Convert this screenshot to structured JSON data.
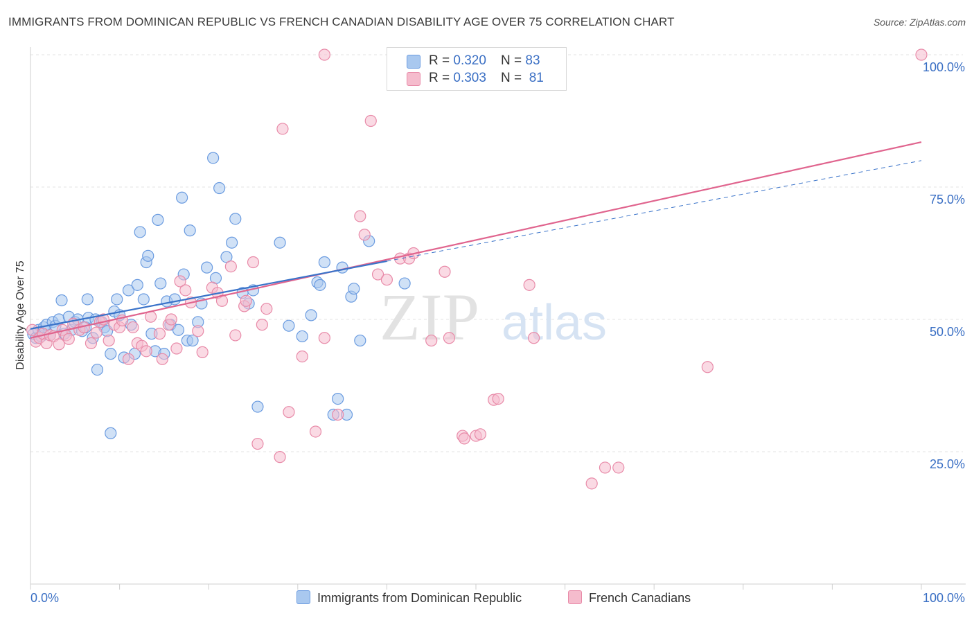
{
  "header": {
    "title": "IMMIGRANTS FROM DOMINICAN REPUBLIC VS FRENCH CANADIAN DISABILITY AGE OVER 75 CORRELATION CHART",
    "source": "Source: ZipAtlas.com"
  },
  "watermark": {
    "zip": "ZIP",
    "atlas": "atlas"
  },
  "legend": {
    "series1": {
      "r_label": "R = ",
      "r_value": "0.320",
      "n_label": "N = ",
      "n_value": "83"
    },
    "series2": {
      "r_label": "R = ",
      "r_value": "0.303",
      "n_label": "N = ",
      "n_value": "81"
    }
  },
  "colors": {
    "blue_fill": "#a9c8ef",
    "blue_stroke": "#6a9be0",
    "blue_line": "#3a73c9",
    "pink_fill": "#f5bccd",
    "pink_stroke": "#e88aa8",
    "pink_line": "#e0648e",
    "axis_text": "#3a6fc4",
    "grid": "#e3e3e3"
  },
  "chart_data": {
    "type": "scatter",
    "title": "IMMIGRANTS FROM DOMINICAN REPUBLIC VS FRENCH CANADIAN DISABILITY AGE OVER 75 CORRELATION CHART",
    "xlabel": "",
    "ylabel": "Disability Age Over 75",
    "xlim": [
      0,
      100
    ],
    "ylim": [
      0,
      100
    ],
    "x_tick_labels": [
      "0.0%",
      "100.0%"
    ],
    "y_tick_labels": [
      "25.0%",
      "50.0%",
      "75.0%",
      "100.0%"
    ],
    "y_ticks": [
      25,
      50,
      75,
      100
    ],
    "grid": "horizontal dashed",
    "legend_position": "top-center",
    "series": [
      {
        "name": "Immigrants from Dominican Republic",
        "color": "#6a9be0",
        "trend": {
          "x": [
            0,
            40
          ],
          "y": [
            48.2,
            61.0
          ],
          "extension_x": [
            40,
            100
          ],
          "extension_y": [
            61.0,
            80.0
          ]
        },
        "points": [
          [
            0.3,
            47.2
          ],
          [
            0.6,
            46.5
          ],
          [
            0.9,
            48.0
          ],
          [
            1.2,
            46.8
          ],
          [
            1.5,
            48.5
          ],
          [
            1.8,
            49.0
          ],
          [
            2.2,
            47.0
          ],
          [
            2.5,
            49.5
          ],
          [
            2.8,
            48.8
          ],
          [
            3.2,
            50.0
          ],
          [
            3.5,
            53.6
          ],
          [
            3.8,
            47.3
          ],
          [
            4.3,
            50.5
          ],
          [
            4.6,
            48.0
          ],
          [
            5.0,
            49.5
          ],
          [
            5.3,
            50.0
          ],
          [
            5.8,
            47.8
          ],
          [
            6.2,
            48.5
          ],
          [
            6.5,
            50.3
          ],
          [
            6.4,
            53.8
          ],
          [
            7.0,
            46.5
          ],
          [
            7.3,
            50.0
          ],
          [
            7.5,
            40.5
          ],
          [
            8.0,
            49.5
          ],
          [
            8.3,
            48.5
          ],
          [
            8.6,
            47.8
          ],
          [
            9.0,
            43.5
          ],
          [
            9.4,
            51.5
          ],
          [
            9.7,
            53.8
          ],
          [
            10.0,
            50.8
          ],
          [
            10.5,
            42.8
          ],
          [
            11.0,
            55.5
          ],
          [
            11.3,
            49.0
          ],
          [
            11.7,
            43.5
          ],
          [
            12.0,
            56.5
          ],
          [
            12.3,
            66.5
          ],
          [
            12.7,
            53.8
          ],
          [
            13.0,
            60.8
          ],
          [
            13.2,
            62.0
          ],
          [
            13.6,
            47.3
          ],
          [
            14.0,
            44.0
          ],
          [
            14.3,
            68.8
          ],
          [
            14.6,
            56.8
          ],
          [
            15.0,
            43.5
          ],
          [
            15.3,
            53.4
          ],
          [
            15.7,
            49.0
          ],
          [
            16.2,
            53.8
          ],
          [
            16.6,
            48.0
          ],
          [
            17.0,
            73.0
          ],
          [
            17.2,
            58.5
          ],
          [
            17.6,
            46.0
          ],
          [
            17.9,
            66.8
          ],
          [
            18.2,
            46.0
          ],
          [
            18.8,
            49.5
          ],
          [
            19.2,
            53.0
          ],
          [
            19.8,
            59.8
          ],
          [
            20.5,
            80.5
          ],
          [
            20.8,
            57.8
          ],
          [
            21.2,
            74.8
          ],
          [
            22.0,
            61.8
          ],
          [
            22.6,
            64.5
          ],
          [
            23.0,
            69.0
          ],
          [
            23.8,
            55.0
          ],
          [
            24.5,
            53.0
          ],
          [
            25.0,
            55.5
          ],
          [
            25.5,
            33.5
          ],
          [
            28.0,
            64.5
          ],
          [
            29.0,
            48.8
          ],
          [
            30.5,
            46.8
          ],
          [
            31.5,
            50.8
          ],
          [
            32.2,
            57.0
          ],
          [
            32.5,
            56.5
          ],
          [
            34.0,
            32.0
          ],
          [
            35.0,
            59.8
          ],
          [
            35.5,
            32.0
          ],
          [
            36.0,
            54.3
          ],
          [
            36.3,
            55.8
          ],
          [
            38.0,
            64.8
          ],
          [
            42.0,
            56.8
          ],
          [
            33.0,
            60.8
          ],
          [
            34.5,
            35.0
          ],
          [
            37.0,
            46.0
          ],
          [
            9.0,
            28.5
          ]
        ]
      },
      {
        "name": "French Canadians",
        "color": "#e88aa8",
        "trend": {
          "x": [
            0,
            100
          ],
          "y": [
            46.5,
            83.5
          ]
        },
        "points": [
          [
            0.2,
            48.0
          ],
          [
            0.6,
            45.8
          ],
          [
            1.0,
            46.5
          ],
          [
            1.4,
            47.3
          ],
          [
            1.8,
            45.5
          ],
          [
            2.2,
            47.0
          ],
          [
            2.6,
            46.8
          ],
          [
            3.2,
            45.3
          ],
          [
            3.6,
            48.0
          ],
          [
            4.0,
            47.0
          ],
          [
            4.3,
            46.3
          ],
          [
            4.8,
            49.2
          ],
          [
            5.5,
            48.0
          ],
          [
            6.0,
            48.5
          ],
          [
            6.8,
            45.5
          ],
          [
            7.4,
            47.5
          ],
          [
            7.8,
            49.5
          ],
          [
            8.2,
            50.0
          ],
          [
            8.8,
            46.0
          ],
          [
            9.4,
            49.0
          ],
          [
            10.0,
            48.5
          ],
          [
            10.3,
            49.8
          ],
          [
            11.0,
            42.5
          ],
          [
            11.5,
            48.5
          ],
          [
            12.0,
            45.5
          ],
          [
            12.5,
            45.0
          ],
          [
            13.0,
            44.0
          ],
          [
            13.5,
            50.5
          ],
          [
            14.5,
            47.3
          ],
          [
            14.8,
            42.5
          ],
          [
            15.5,
            49.0
          ],
          [
            15.8,
            50.0
          ],
          [
            16.4,
            44.5
          ],
          [
            16.8,
            57.2
          ],
          [
            17.4,
            55.5
          ],
          [
            18.0,
            53.2
          ],
          [
            18.8,
            47.8
          ],
          [
            19.3,
            43.8
          ],
          [
            20.4,
            56.0
          ],
          [
            21.0,
            55.0
          ],
          [
            21.5,
            53.5
          ],
          [
            22.5,
            60.0
          ],
          [
            23.0,
            47.0
          ],
          [
            24.0,
            52.5
          ],
          [
            24.2,
            53.5
          ],
          [
            25.0,
            60.8
          ],
          [
            25.5,
            26.5
          ],
          [
            26.0,
            49.0
          ],
          [
            26.5,
            52.0
          ],
          [
            28.0,
            24.0
          ],
          [
            28.3,
            86.0
          ],
          [
            29.0,
            32.5
          ],
          [
            30.5,
            43.0
          ],
          [
            32.0,
            28.8
          ],
          [
            33.0,
            46.5
          ],
          [
            34.5,
            32.0
          ],
          [
            37.0,
            69.5
          ],
          [
            37.5,
            66.0
          ],
          [
            38.2,
            87.5
          ],
          [
            39.0,
            58.5
          ],
          [
            40.0,
            57.5
          ],
          [
            41.5,
            61.5
          ],
          [
            42.5,
            61.5
          ],
          [
            43.0,
            62.5
          ],
          [
            45.0,
            46.0
          ],
          [
            46.5,
            59.0
          ],
          [
            47.0,
            46.5
          ],
          [
            48.5,
            28.0
          ],
          [
            48.7,
            27.5
          ],
          [
            50.0,
            28.0
          ],
          [
            50.5,
            28.3
          ],
          [
            52.0,
            34.8
          ],
          [
            52.5,
            35.0
          ],
          [
            56.0,
            56.5
          ],
          [
            56.5,
            46.5
          ],
          [
            63.0,
            19.0
          ],
          [
            64.5,
            22.0
          ],
          [
            66.0,
            22.0
          ],
          [
            76.0,
            41.0
          ],
          [
            100.0,
            100.0
          ],
          [
            33.0,
            100.0
          ]
        ]
      }
    ]
  },
  "bottom_legend": {
    "item1": "Immigrants from Dominican Republic",
    "item2": "French Canadians"
  },
  "axes": {
    "ylabel": "Disability Age Over 75",
    "x_min_label": "0.0%",
    "x_max_label": "100.0%"
  }
}
